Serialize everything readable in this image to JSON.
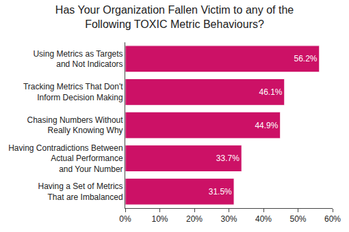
{
  "chart_data": {
    "type": "bar",
    "orientation": "horizontal",
    "title": "Has Your Organization Fallen Victim to any of the\nFollowing TOXIC Metric Behaviours?",
    "categories": [
      "Using Metrics as Targets\nand Not Indicators",
      "Tracking Metrics That Don't\nInform Decision Making",
      "Chasing Numbers Without\nReally Knowing Why",
      "Having Contradictions Between\nActual Performance\nand Your Number",
      "Having a Set of Metrics\nThat are Imbalanced"
    ],
    "values": [
      56.2,
      46.1,
      44.9,
      33.7,
      31.5
    ],
    "value_labels": [
      "56.2%",
      "46.1%",
      "44.9%",
      "33.7%",
      "31.5%"
    ],
    "data_labels": true,
    "color": "#cc1166",
    "xlim": [
      0,
      60
    ],
    "xticks": [
      {
        "value": 0,
        "label": "0%"
      },
      {
        "value": 10,
        "label": "10%"
      },
      {
        "value": 20,
        "label": "20%"
      },
      {
        "value": 30,
        "label": "30%"
      },
      {
        "value": 40,
        "label": "40%"
      },
      {
        "value": 50,
        "label": "50%"
      },
      {
        "value": 60,
        "label": "60%"
      }
    ],
    "grid": false
  }
}
